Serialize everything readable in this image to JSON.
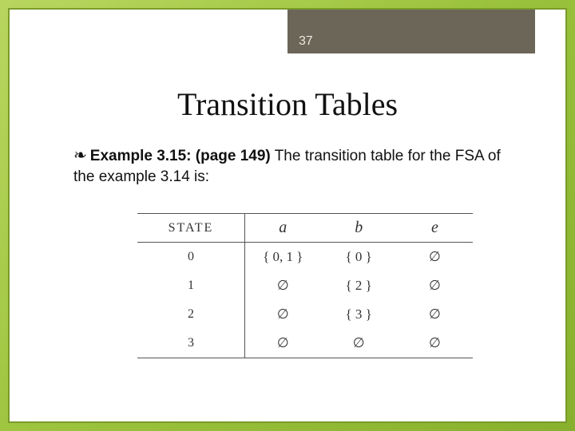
{
  "slide": {
    "page_number": "37",
    "title": "Transition Tables",
    "bullet_glyph": "❧",
    "body_lead": "Example 3.15: (page 149)",
    "body_rest": " The transition table for the FSA of the example 3.14 is:"
  },
  "table": {
    "headers": {
      "state": "STATE",
      "col_a": "a",
      "col_b": "b",
      "col_e": "e"
    },
    "rows": [
      {
        "state": "0",
        "a": "{ 0, 1 }",
        "b": "{ 0 }",
        "e": "∅"
      },
      {
        "state": "1",
        "a": "∅",
        "b": "{ 2 }",
        "e": "∅"
      },
      {
        "state": "2",
        "a": "∅",
        "b": "{ 3 }",
        "e": "∅"
      },
      {
        "state": "3",
        "a": "∅",
        "b": "∅",
        "e": "∅"
      }
    ]
  },
  "style": {
    "background_gradient": [
      "#b8d65f",
      "#9bc23c",
      "#88b02e"
    ],
    "frame_border": "#7a9b2a",
    "header_bar_bg": "#6b6658",
    "header_bar_fg": "#e8e6df",
    "text_color": "#111111",
    "table_border": "#555555",
    "title_fontsize_pt": 30,
    "body_fontsize_pt": 14,
    "table_fontsize_pt": 13
  }
}
